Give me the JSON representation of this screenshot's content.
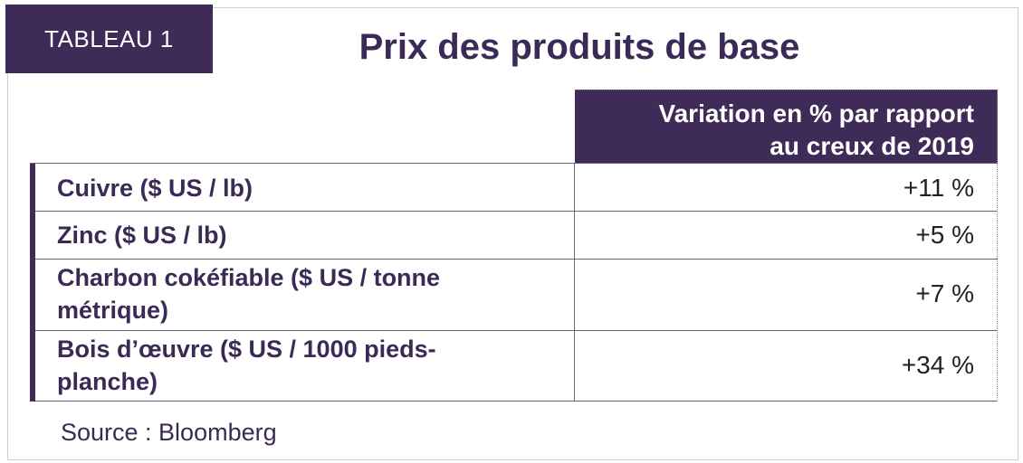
{
  "tag_label": "TABLEAU 1",
  "title": "Prix des produits de base",
  "column_header": {
    "line1": "Variation en % par rapport",
    "line2": "au creux de 2019"
  },
  "rows": [
    {
      "label": "Cuivre ($ US / lb)",
      "value": "+11 %"
    },
    {
      "label": "Zinc ($ US / lb)",
      "value": "+5 %"
    },
    {
      "label_line1": "Charbon cokéfiable ($ US / tonne",
      "label_line2": "métrique)",
      "value": "+7 %"
    },
    {
      "label_line1": "Bois d’œuvre ($ US / 1000 pieds-",
      "label_line2": "planche)",
      "value": "+34 %"
    }
  ],
  "source": "Source : Bloomberg",
  "colors": {
    "accent": "#3e2b57",
    "text": "#3b2a56"
  }
}
